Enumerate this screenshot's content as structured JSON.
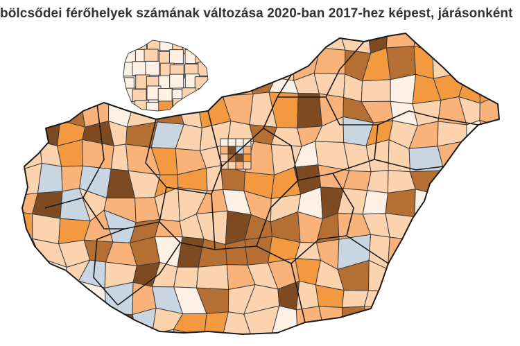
{
  "title": "bölcsődei férőhelyek számának változása 2020-ban 2017-hez képest, járásonként",
  "legend_colors": {
    "decrease": "#c9d6e1",
    "no_change": "#fdf0e4",
    "small_increase": "#fbd3ae",
    "medium_increase": "#f9b37a",
    "large_increase": "#f39a40",
    "very_large_increase": "#b66f33",
    "largest_increase": "#7d4a22"
  }
}
